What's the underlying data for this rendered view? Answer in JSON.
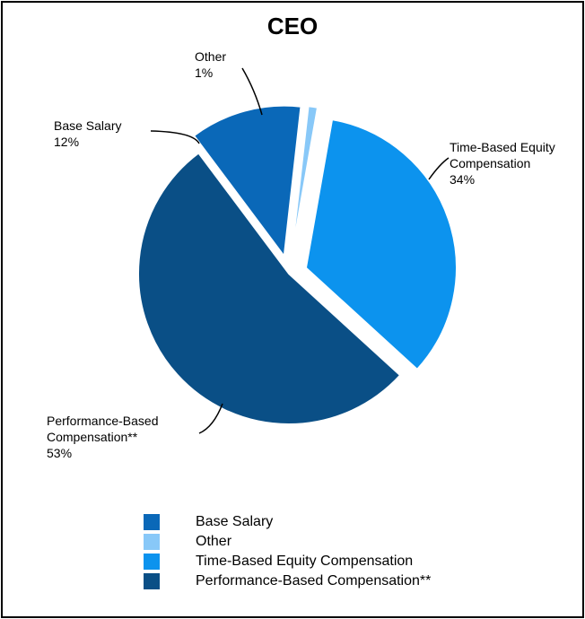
{
  "chart_data": {
    "type": "pie",
    "title": "CEO",
    "slices": [
      {
        "name": "Time-Based Equity Compensation",
        "label_lines": [
          "Time-Based Equity",
          "Compensation",
          "34%"
        ],
        "value": 34,
        "color": "#0C93EE",
        "exploded": true
      },
      {
        "name": "Performance-Based Compensation**",
        "label_lines": [
          "Performance-Based",
          "Compensation**",
          "53%"
        ],
        "value": 53,
        "color": "#0A4F86",
        "exploded": false
      },
      {
        "name": "Base Salary",
        "label_lines": [
          "Base Salary",
          "12%"
        ],
        "value": 12,
        "color": "#0A68B8",
        "exploded": true
      },
      {
        "name": "Other",
        "label_lines": [
          "Other",
          "1%"
        ],
        "value": 1,
        "color": "#88C8F8",
        "exploded": true
      }
    ],
    "legend": {
      "placement": "bottom",
      "items": [
        {
          "label": "Base Salary",
          "color": "#0A68B8"
        },
        {
          "label": "Other",
          "color": "#88C8F8"
        },
        {
          "label": "Time-Based Equity Compensation",
          "color": "#0C93EE"
        },
        {
          "label": "Performance-Based Compensation**",
          "color": "#0A4F86"
        }
      ]
    }
  }
}
